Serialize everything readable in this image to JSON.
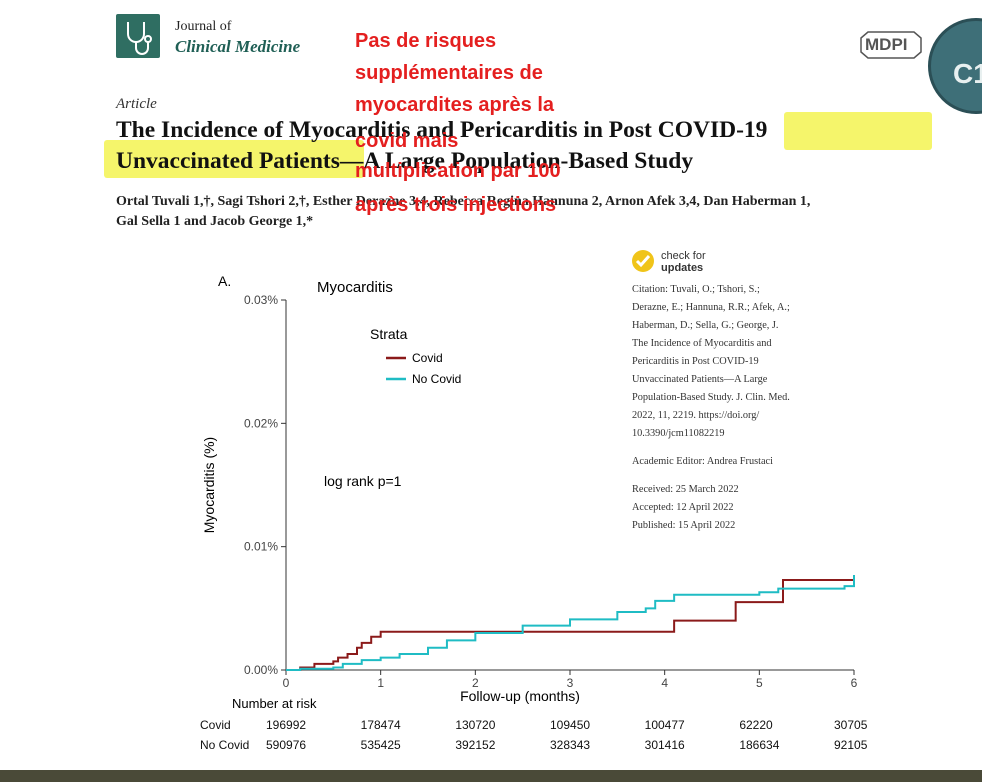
{
  "journal": {
    "line1": "Journal of",
    "line2": "Clinical Medicine",
    "publisher": "MDPI",
    "badge": "C1"
  },
  "article_type": "Article",
  "title": {
    "line1": "The Incidence of Myocarditis and Pericarditis in Post COVID-19",
    "line2": "Unvaccinated Patients—A Large Population-Based Study"
  },
  "authors": {
    "line1": "Ortal Tuvali 1,†, Sagi Tshori 2,†, Esther Derazne 3,4, Rebecca Regina Hannuna 2, Arnon Afek 3,4, Dan Haberman 1,",
    "line2": "Gal Sella 1 and Jacob George 1,*"
  },
  "annotation": [
    "Pas de risques",
    "supplémentaires de",
    "myocardites  après la",
    "covid mais",
    "multiplication par 100",
    "après trois injections"
  ],
  "check_updates": {
    "line1": "check for",
    "line2": "updates"
  },
  "citation": [
    "Citation: Tuvali, O.; Tshori, S.;",
    "Derazne, E.; Hannuna, R.R.; Afek, A.;",
    "Haberman, D.; Sella, G.; George, J.",
    "The Incidence of Myocarditis and",
    "Pericarditis in Post COVID-19",
    "Unvaccinated Patients—A Large",
    "Population-Based Study. J. Clin. Med.",
    "2022, 11, 2219.  https://doi.org/",
    "10.3390/jcm11082219"
  ],
  "academic_editor": "Academic Editor: Andrea Frustaci",
  "dates": [
    "Received: 25 March 2022",
    "Accepted: 12 April 2022",
    "Published: 15 April 2022"
  ],
  "chart_data": {
    "type": "line",
    "panel": "A.",
    "title": "Myocarditis",
    "xlabel": "Follow-up (months)",
    "ylabel": "Myocarditis (%)",
    "xlim": [
      0,
      6
    ],
    "ylim": [
      0,
      0.03
    ],
    "xticks": [
      "0",
      "1",
      "2",
      "3",
      "4",
      "5",
      "6"
    ],
    "yticks": [
      "0.00%",
      "0.01%",
      "0.02%",
      "0.03%"
    ],
    "legend_title": "Strata",
    "annotation": "log rank p=1",
    "series": [
      {
        "name": "Covid",
        "color": "#8b1a1a",
        "x": [
          0,
          0.15,
          0.3,
          0.5,
          0.55,
          0.65,
          0.75,
          0.8,
          0.9,
          1.0,
          4.1,
          4.1,
          4.75,
          4.75,
          5.25,
          5.25,
          6
        ],
        "y": [
          0,
          0.0002,
          0.0005,
          0.0007,
          0.001,
          0.0013,
          0.0018,
          0.0022,
          0.0027,
          0.0031,
          0.0031,
          0.004,
          0.004,
          0.0055,
          0.0055,
          0.0073,
          0.0075
        ]
      },
      {
        "name": "No Covid",
        "color": "#1fbcc4",
        "x": [
          0,
          0.15,
          0.5,
          0.6,
          0.8,
          1.0,
          1.2,
          1.5,
          1.7,
          2.0,
          2.5,
          3.0,
          3.5,
          3.8,
          3.9,
          4.1,
          4.5,
          5.0,
          5.2,
          5.9,
          6
        ],
        "y": [
          0,
          0.0001,
          0.0002,
          0.0005,
          0.0008,
          0.001,
          0.0013,
          0.0018,
          0.0024,
          0.003,
          0.0036,
          0.0041,
          0.0047,
          0.005,
          0.0056,
          0.0061,
          0.0061,
          0.0063,
          0.0066,
          0.0068,
          0.0077
        ]
      }
    ],
    "risk_table": {
      "title": "Number at risk",
      "rows": [
        {
          "label": "Covid",
          "values": [
            "196992",
            "178474",
            "130720",
            "109450",
            "100477",
            "62220",
            "30705"
          ]
        },
        {
          "label": "No Covid",
          "values": [
            "590976",
            "535425",
            "392152",
            "328343",
            "301416",
            "186634",
            "92105"
          ]
        }
      ]
    }
  }
}
